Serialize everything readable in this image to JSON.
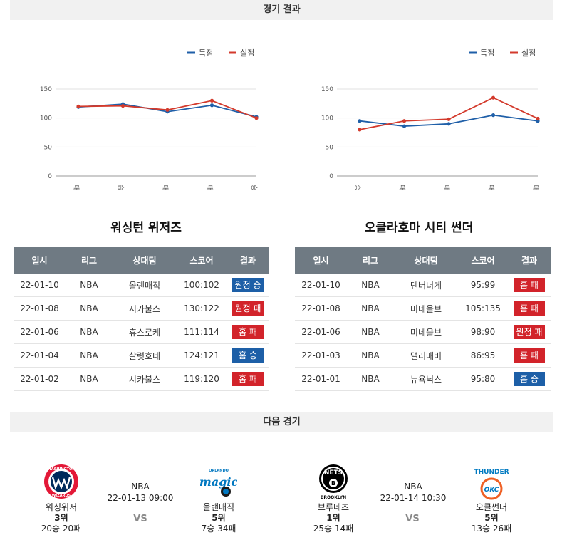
{
  "sections": {
    "results_title": "경기 결과",
    "next_title": "다음 경기"
  },
  "legend": {
    "scored": "득점",
    "conceded": "실점"
  },
  "colors": {
    "scored": "#1f5fa8",
    "conceded": "#d33a2c",
    "win": "#1d5fa7",
    "loss": "#d2232a"
  },
  "chart_data": [
    {
      "type": "line",
      "categories": [
        "패",
        "승",
        "패",
        "패",
        "승"
      ],
      "series": [
        {
          "name": "득점",
          "values": [
            119,
            124,
            111,
            122,
            102
          ]
        },
        {
          "name": "실점",
          "values": [
            120,
            121,
            114,
            130,
            100
          ]
        }
      ],
      "ylim": [
        0,
        150
      ],
      "yticks": [
        "0",
        "50",
        "100",
        "150"
      ],
      "grid": true,
      "legend": "top-right"
    },
    {
      "type": "line",
      "categories": [
        "승",
        "패",
        "패",
        "패",
        "패"
      ],
      "series": [
        {
          "name": "득점",
          "values": [
            95,
            86,
            90,
            105,
            95
          ]
        },
        {
          "name": "실점",
          "values": [
            80,
            95,
            98,
            135,
            99
          ]
        }
      ],
      "ylim": [
        0,
        150
      ],
      "yticks": [
        "0",
        "50",
        "100",
        "150"
      ],
      "grid": true,
      "legend": "top-right"
    }
  ],
  "teams": [
    {
      "name": "워싱턴 위저즈",
      "headers": [
        "일시",
        "리그",
        "상대팀",
        "스코어",
        "결과"
      ],
      "rows": [
        {
          "date": "22-01-10",
          "league": "NBA",
          "opponent": "올랜매직",
          "score": "100:102",
          "result": "원정 승",
          "kind": "win"
        },
        {
          "date": "22-01-08",
          "league": "NBA",
          "opponent": "시카불스",
          "score": "130:122",
          "result": "원정 패",
          "kind": "loss"
        },
        {
          "date": "22-01-06",
          "league": "NBA",
          "opponent": "휴스로케",
          "score": "111:114",
          "result": "홈 패",
          "kind": "loss"
        },
        {
          "date": "22-01-04",
          "league": "NBA",
          "opponent": "샬럿호네",
          "score": "124:121",
          "result": "홈 승",
          "kind": "win"
        },
        {
          "date": "22-01-02",
          "league": "NBA",
          "opponent": "시카불스",
          "score": "119:120",
          "result": "홈 패",
          "kind": "loss"
        }
      ]
    },
    {
      "name": "오클라호마 시티 썬더",
      "headers": [
        "일시",
        "리그",
        "상대팀",
        "스코어",
        "결과"
      ],
      "rows": [
        {
          "date": "22-01-10",
          "league": "NBA",
          "opponent": "덴버너게",
          "score": "95:99",
          "result": "홈 패",
          "kind": "loss"
        },
        {
          "date": "22-01-08",
          "league": "NBA",
          "opponent": "미네울브",
          "score": "105:135",
          "result": "홈 패",
          "kind": "loss"
        },
        {
          "date": "22-01-06",
          "league": "NBA",
          "opponent": "미네울브",
          "score": "98:90",
          "result": "원정 패",
          "kind": "loss"
        },
        {
          "date": "22-01-03",
          "league": "NBA",
          "opponent": "댈러매버",
          "score": "86:95",
          "result": "홈 패",
          "kind": "loss"
        },
        {
          "date": "22-01-01",
          "league": "NBA",
          "opponent": "뉴욕닉스",
          "score": "95:80",
          "result": "홈 승",
          "kind": "win"
        }
      ]
    }
  ],
  "next_games": [
    {
      "league": "NBA",
      "datetime": "22-01-13 09:00",
      "vs": "VS",
      "home": {
        "name": "워싱위저",
        "rank": "3위",
        "record": "20승 20패",
        "logo": "wizards-logo"
      },
      "away": {
        "name": "올랜매직",
        "rank": "5위",
        "record": "7승 34패",
        "logo": "magic-logo"
      }
    },
    {
      "league": "NBA",
      "datetime": "22-01-14 10:30",
      "vs": "VS",
      "home": {
        "name": "브루네츠",
        "rank": "1위",
        "record": "25승 14패",
        "logo": "nets-logo"
      },
      "away": {
        "name": "오클썬더",
        "rank": "5위",
        "record": "13승 26패",
        "logo": "thunder-logo"
      }
    }
  ],
  "logo_text": {
    "wizards_top": "WASHINGTON",
    "wizards_bottom": "WIZARDS",
    "magic": "magic",
    "magic_top": "ORLANDO",
    "nets": "NETS",
    "nets_bottom": "BROOKLYN",
    "thunder": "THUNDER",
    "okc": "OKC"
  }
}
